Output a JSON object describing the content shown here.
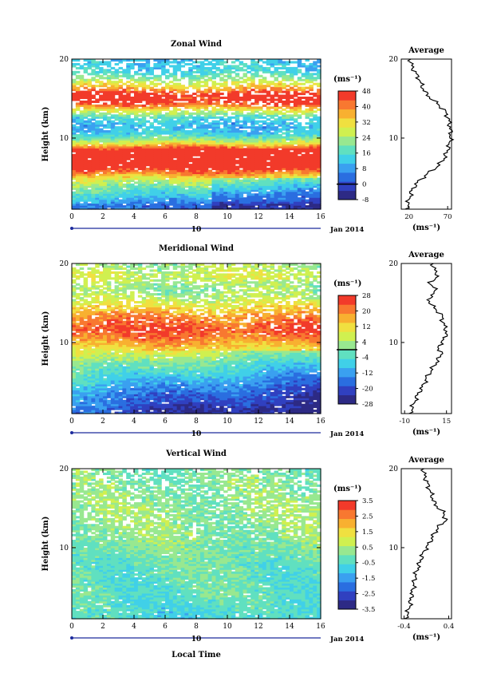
{
  "figure": {
    "xlabel": "Local Time",
    "date_label": "Jan 2014",
    "day_label": "10",
    "avg_title": "Average",
    "unit_colorbar": "(ms⁻¹)",
    "unit_avg": "(ms⁻¹)",
    "ylabel": "Height (km)",
    "colors": {
      "palette": [
        "#2d2a85",
        "#3040c0",
        "#2a6ee0",
        "#3aa0f0",
        "#40d0e8",
        "#60e0c0",
        "#98e890",
        "#d0f050",
        "#f0e040",
        "#f8b030",
        "#f87830",
        "#f23a2a"
      ],
      "contour": "#000000",
      "background": "#ffffff"
    }
  },
  "chart_data": [
    {
      "id": "zonal",
      "type": "heatmap",
      "title": "Zonal Wind",
      "x": {
        "label": "Local Time",
        "range": [
          0,
          16
        ],
        "ticks": [
          0,
          2,
          4,
          6,
          8,
          10,
          12,
          14,
          16
        ]
      },
      "y": {
        "label": "Height (km)",
        "range": [
          1,
          20
        ],
        "ticks": [
          10,
          20
        ]
      },
      "colorbar": {
        "unit": "(ms⁻¹)",
        "range": [
          -8,
          48
        ],
        "ticks": [
          -8,
          0,
          8,
          16,
          24,
          32,
          40,
          48
        ],
        "contour_level": 0
      },
      "average": {
        "title": "Average",
        "unit": "(ms⁻¹)",
        "xlim": [
          10,
          75
        ],
        "xticks": [
          20,
          70
        ],
        "height_km": [
          1.5,
          2.5,
          3.5,
          4.5,
          5.5,
          6.5,
          7.5,
          8.5,
          9.5,
          10.5,
          11.5,
          12.5,
          13.5,
          14.5,
          15.5,
          16.5,
          17.5,
          18.5,
          19.5
        ],
        "values": [
          18,
          21,
          24,
          32,
          44,
          58,
          66,
          70,
          73,
          74,
          73,
          71,
          66,
          55,
          43,
          37,
          33,
          27,
          22
        ]
      },
      "field_heights_km": [
        1.5,
        2.5,
        3.5,
        4.5,
        5.5,
        6.5,
        7.5,
        8.5,
        9.5,
        10.5,
        11.5,
        12.5,
        13.5,
        14.5,
        15.5,
        16.5,
        17.5,
        18.5,
        19.5
      ],
      "field_mean_ms": [
        4,
        12,
        18,
        26,
        38,
        52,
        55,
        50,
        28,
        14,
        10,
        14,
        28,
        46,
        48,
        34,
        22,
        14,
        12
      ]
    },
    {
      "id": "meridional",
      "type": "heatmap",
      "title": "Meridional Wind",
      "x": {
        "label": "Local Time",
        "range": [
          0,
          16
        ],
        "ticks": [
          0,
          2,
          4,
          6,
          8,
          10,
          12,
          14,
          16
        ]
      },
      "y": {
        "label": "Height (km)",
        "range": [
          1,
          20
        ],
        "ticks": [
          10,
          20
        ]
      },
      "colorbar": {
        "unit": "(ms⁻¹)",
        "range": [
          -28,
          28
        ],
        "ticks": [
          -28,
          -20,
          -12,
          -4,
          4,
          12,
          20,
          28
        ],
        "contour_level": 0
      },
      "average": {
        "title": "Average",
        "unit": "(ms⁻¹)",
        "xlim": [
          -12,
          18
        ],
        "xticks": [
          -10,
          15
        ],
        "height_km": [
          1.5,
          2.5,
          3.5,
          4.5,
          5.5,
          6.5,
          7.5,
          8.5,
          9.5,
          10.5,
          11.5,
          12.5,
          13.5,
          14.5,
          15.5,
          16.5,
          17.5,
          18.5,
          19.5
        ],
        "values": [
          -6,
          -4,
          -2,
          1,
          3,
          6,
          9,
          12,
          10,
          14,
          15,
          13,
          12,
          7,
          4,
          9,
          5,
          10,
          7
        ]
      },
      "field_heights_km": [
        1.5,
        2.5,
        3.5,
        4.5,
        5.5,
        6.5,
        7.5,
        8.5,
        9.5,
        10.5,
        11.5,
        12.5,
        13.5,
        14.5,
        15.5,
        16.5,
        17.5,
        18.5,
        19.5
      ],
      "field_mean_ms": [
        -18,
        -14,
        -12,
        -8,
        -4,
        0,
        4,
        10,
        14,
        20,
        24,
        22,
        18,
        12,
        6,
        2,
        4,
        8,
        4
      ]
    },
    {
      "id": "vertical",
      "type": "heatmap",
      "title": "Vertical Wind",
      "x": {
        "label": "Local Time",
        "range": [
          0,
          16
        ],
        "ticks": [
          0,
          2,
          4,
          6,
          8,
          10,
          12,
          14,
          16
        ]
      },
      "y": {
        "label": "Height (km)",
        "range": [
          1,
          20
        ],
        "ticks": [
          10,
          20
        ]
      },
      "colorbar": {
        "unit": "(ms⁻¹)",
        "range": [
          -3.5,
          3.5
        ],
        "ticks": [
          -3.5,
          -2.5,
          -1.5,
          -0.5,
          0.5,
          1.5,
          2.5,
          3.5
        ],
        "contour_level": null
      },
      "average": {
        "title": "Average",
        "unit": "(ms⁻¹)",
        "xlim": [
          -0.45,
          0.45
        ],
        "xticks": [
          -0.4,
          0.4
        ],
        "height_km": [
          1.5,
          2.5,
          3.5,
          4.5,
          5.5,
          6.5,
          7.5,
          8.5,
          9.5,
          10.5,
          11.5,
          12.5,
          13.5,
          14.5,
          15.5,
          16.5,
          17.5,
          18.5,
          19.5
        ],
        "values": [
          -0.35,
          -0.3,
          -0.28,
          -0.25,
          -0.22,
          -0.2,
          -0.15,
          -0.1,
          -0.05,
          0.05,
          0.12,
          0.2,
          0.35,
          0.3,
          0.15,
          0.1,
          0.05,
          0.0,
          -0.05
        ]
      },
      "field_heights_km": [
        1.5,
        2.5,
        3.5,
        4.5,
        5.5,
        6.5,
        7.5,
        8.5,
        9.5,
        10.5,
        11.5,
        12.5,
        13.5,
        14.5,
        15.5,
        16.5,
        17.5,
        18.5,
        19.5
      ],
      "field_mean_ms": [
        -0.6,
        -0.5,
        -0.4,
        -0.3,
        -0.3,
        -0.2,
        -0.2,
        -0.1,
        0.0,
        0.1,
        0.2,
        0.2,
        0.3,
        0.3,
        0.2,
        0.2,
        0.1,
        0.1,
        0.0
      ]
    }
  ]
}
